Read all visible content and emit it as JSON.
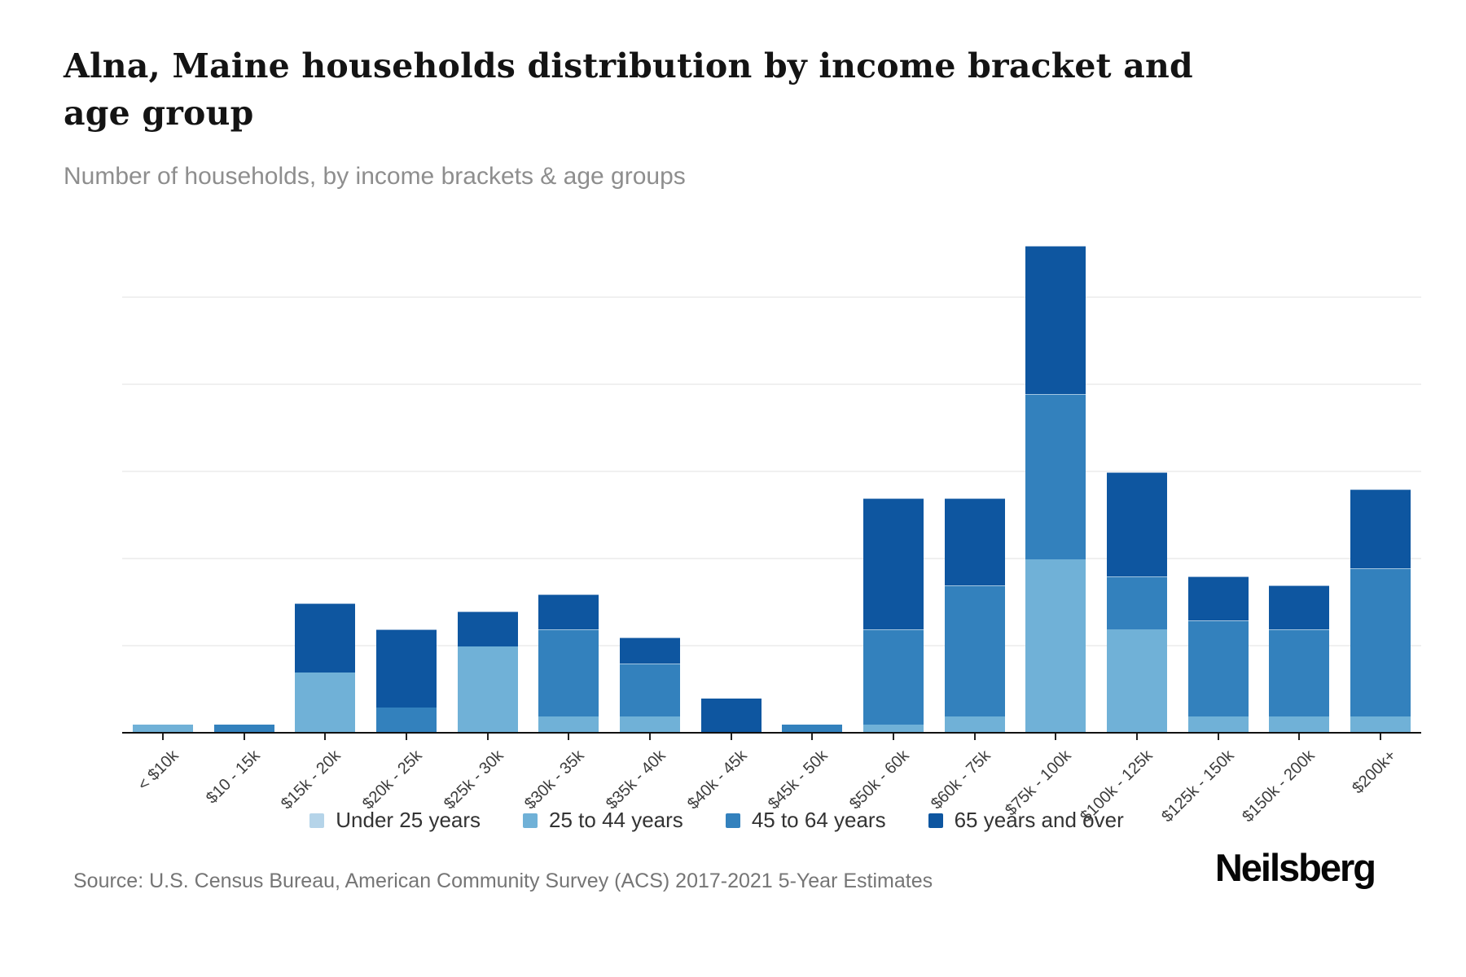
{
  "chart_data": {
    "type": "bar",
    "stacked": true,
    "title": "Alna, Maine households distribution by income bracket and age group",
    "subtitle": "Number of households, by income brackets & age groups",
    "source": "Source: U.S. Census Bureau, American Community Survey (ACS) 2017-2021 5-Year Estimates",
    "brand": "Neilsberg",
    "xlabel": "",
    "ylabel": "",
    "categories": [
      "< $10k",
      "$10 - 15k",
      "$15k - 20k",
      "$20k - 25k",
      "$25k - 30k",
      "$30k - 35k",
      "$35k - 40k",
      "$40k - 45k",
      "$45k - 50k",
      "$50k - 60k",
      "$60k - 75k",
      "$75k - 100k",
      "$100k - 125k",
      "$125k - 150k",
      "$150k - 200k",
      "$200k+"
    ],
    "series": [
      {
        "name": "Under 25 years",
        "color": "#b5d4e9",
        "values": [
          0,
          0,
          0,
          0,
          0,
          0,
          0,
          0,
          0,
          0,
          0,
          0,
          0,
          0,
          0,
          0
        ]
      },
      {
        "name": "25 to 44 years",
        "color": "#70b1d7",
        "values": [
          1,
          0,
          7,
          0,
          10,
          2,
          2,
          0,
          0,
          1,
          2,
          20,
          12,
          2,
          2,
          2
        ]
      },
      {
        "name": "45 to 64 years",
        "color": "#3381bd",
        "values": [
          0,
          1,
          0,
          3,
          0,
          10,
          6,
          0,
          1,
          11,
          15,
          19,
          6,
          11,
          10,
          17
        ]
      },
      {
        "name": "65 years and over",
        "color": "#0e56a0",
        "values": [
          0,
          0,
          8,
          9,
          4,
          4,
          3,
          4,
          0,
          15,
          10,
          17,
          12,
          5,
          5,
          9
        ]
      }
    ],
    "totals": [
      1,
      1,
      15,
      12,
      14,
      16,
      11,
      4,
      1,
      27,
      27,
      56,
      30,
      18,
      17,
      28
    ],
    "yticks": [
      0,
      10,
      20,
      30,
      40,
      50
    ],
    "ylim": [
      0,
      60.8
    ],
    "grid": "horizontal",
    "legend_position": "bottom"
  }
}
